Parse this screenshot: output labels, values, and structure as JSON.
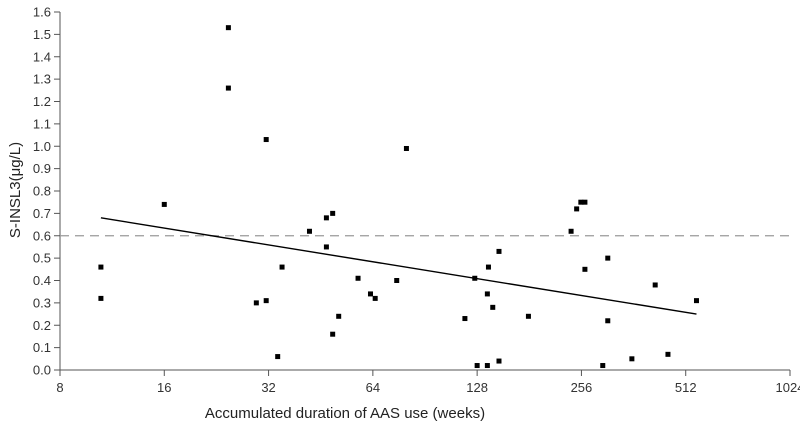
{
  "chart_data": {
    "type": "scatter",
    "xlabel": "Accumulated duration of AAS use (weeks)",
    "ylabel": "S-INSL3(μg/L)",
    "x_scale": "log2",
    "xlim": [
      8,
      1024
    ],
    "ylim": [
      0,
      1.6
    ],
    "x_ticks": [
      "8",
      "16",
      "32",
      "64",
      "128",
      "256",
      "512",
      "1024"
    ],
    "y_ticks": [
      "0.0",
      "0.1",
      "0.2",
      "0.3",
      "0.4",
      "0.5",
      "0.6",
      "0.7",
      "0.8",
      "0.9",
      "1.0",
      "1.1",
      "1.2",
      "1.3",
      "1.4",
      "1.5",
      "1.6"
    ],
    "grid": false,
    "legend": "none",
    "points": [
      {
        "x": 10.5,
        "y": 0.46
      },
      {
        "x": 10.5,
        "y": 0.32
      },
      {
        "x": 16,
        "y": 0.74
      },
      {
        "x": 24.5,
        "y": 1.53
      },
      {
        "x": 24.5,
        "y": 1.26
      },
      {
        "x": 29.5,
        "y": 0.3
      },
      {
        "x": 31.5,
        "y": 1.03
      },
      {
        "x": 31.5,
        "y": 0.31
      },
      {
        "x": 34,
        "y": 0.06
      },
      {
        "x": 35,
        "y": 0.46
      },
      {
        "x": 42,
        "y": 0.62
      },
      {
        "x": 47,
        "y": 0.68
      },
      {
        "x": 47,
        "y": 0.55
      },
      {
        "x": 49,
        "y": 0.7
      },
      {
        "x": 49,
        "y": 0.16
      },
      {
        "x": 51,
        "y": 0.24
      },
      {
        "x": 58,
        "y": 0.41
      },
      {
        "x": 63,
        "y": 0.34
      },
      {
        "x": 65,
        "y": 0.32
      },
      {
        "x": 75,
        "y": 0.4
      },
      {
        "x": 80,
        "y": 0.99
      },
      {
        "x": 118,
        "y": 0.23
      },
      {
        "x": 126,
        "y": 0.41
      },
      {
        "x": 128,
        "y": 0.02
      },
      {
        "x": 137,
        "y": 0.02
      },
      {
        "x": 137,
        "y": 0.34
      },
      {
        "x": 138,
        "y": 0.46
      },
      {
        "x": 142,
        "y": 0.28
      },
      {
        "x": 148,
        "y": 0.53
      },
      {
        "x": 148,
        "y": 0.04
      },
      {
        "x": 180,
        "y": 0.24
      },
      {
        "x": 239,
        "y": 0.62
      },
      {
        "x": 248,
        "y": 0.72
      },
      {
        "x": 255,
        "y": 0.75
      },
      {
        "x": 262,
        "y": 0.75
      },
      {
        "x": 262,
        "y": 0.45
      },
      {
        "x": 295,
        "y": 0.02
      },
      {
        "x": 305,
        "y": 0.5
      },
      {
        "x": 305,
        "y": 0.22
      },
      {
        "x": 358,
        "y": 0.05
      },
      {
        "x": 418,
        "y": 0.38
      },
      {
        "x": 455,
        "y": 0.07
      },
      {
        "x": 550,
        "y": 0.31
      }
    ],
    "trend_line": {
      "x": [
        10.5,
        550
      ],
      "y": [
        0.68,
        0.25
      ]
    },
    "reference_line": {
      "y": 0.6,
      "style": "dashed"
    }
  },
  "colors": {
    "points": "#000000",
    "trend_line": "#000000",
    "reference_line": "#9a9a9a",
    "axis": "#555555",
    "text": "#333333"
  }
}
